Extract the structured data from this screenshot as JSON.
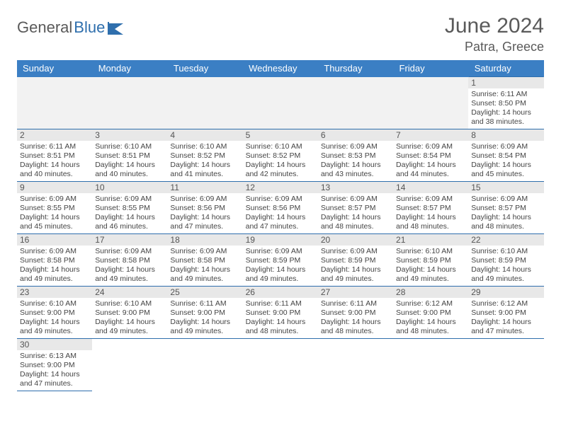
{
  "logo": {
    "text1": "General",
    "text2": "Blue"
  },
  "title": "June 2024",
  "location": "Patra, Greece",
  "colors": {
    "header_bg": "#3b7fc4",
    "header_fg": "#ffffff",
    "grid_line": "#2f6fad",
    "daynum_bg": "#e8e8e8",
    "empty_bg": "#f2f2f2",
    "text": "#444444",
    "title_color": "#5a5a5a"
  },
  "weekdays": [
    "Sunday",
    "Monday",
    "Tuesday",
    "Wednesday",
    "Thursday",
    "Friday",
    "Saturday"
  ],
  "weeks": [
    [
      null,
      null,
      null,
      null,
      null,
      null,
      {
        "n": "1",
        "sr": "6:11 AM",
        "ss": "8:50 PM",
        "dl": "14 hours and 38 minutes."
      }
    ],
    [
      {
        "n": "2",
        "sr": "6:11 AM",
        "ss": "8:51 PM",
        "dl": "14 hours and 40 minutes."
      },
      {
        "n": "3",
        "sr": "6:10 AM",
        "ss": "8:51 PM",
        "dl": "14 hours and 40 minutes."
      },
      {
        "n": "4",
        "sr": "6:10 AM",
        "ss": "8:52 PM",
        "dl": "14 hours and 41 minutes."
      },
      {
        "n": "5",
        "sr": "6:10 AM",
        "ss": "8:52 PM",
        "dl": "14 hours and 42 minutes."
      },
      {
        "n": "6",
        "sr": "6:09 AM",
        "ss": "8:53 PM",
        "dl": "14 hours and 43 minutes."
      },
      {
        "n": "7",
        "sr": "6:09 AM",
        "ss": "8:54 PM",
        "dl": "14 hours and 44 minutes."
      },
      {
        "n": "8",
        "sr": "6:09 AM",
        "ss": "8:54 PM",
        "dl": "14 hours and 45 minutes."
      }
    ],
    [
      {
        "n": "9",
        "sr": "6:09 AM",
        "ss": "8:55 PM",
        "dl": "14 hours and 45 minutes."
      },
      {
        "n": "10",
        "sr": "6:09 AM",
        "ss": "8:55 PM",
        "dl": "14 hours and 46 minutes."
      },
      {
        "n": "11",
        "sr": "6:09 AM",
        "ss": "8:56 PM",
        "dl": "14 hours and 47 minutes."
      },
      {
        "n": "12",
        "sr": "6:09 AM",
        "ss": "8:56 PM",
        "dl": "14 hours and 47 minutes."
      },
      {
        "n": "13",
        "sr": "6:09 AM",
        "ss": "8:57 PM",
        "dl": "14 hours and 48 minutes."
      },
      {
        "n": "14",
        "sr": "6:09 AM",
        "ss": "8:57 PM",
        "dl": "14 hours and 48 minutes."
      },
      {
        "n": "15",
        "sr": "6:09 AM",
        "ss": "8:57 PM",
        "dl": "14 hours and 48 minutes."
      }
    ],
    [
      {
        "n": "16",
        "sr": "6:09 AM",
        "ss": "8:58 PM",
        "dl": "14 hours and 49 minutes."
      },
      {
        "n": "17",
        "sr": "6:09 AM",
        "ss": "8:58 PM",
        "dl": "14 hours and 49 minutes."
      },
      {
        "n": "18",
        "sr": "6:09 AM",
        "ss": "8:58 PM",
        "dl": "14 hours and 49 minutes."
      },
      {
        "n": "19",
        "sr": "6:09 AM",
        "ss": "8:59 PM",
        "dl": "14 hours and 49 minutes."
      },
      {
        "n": "20",
        "sr": "6:09 AM",
        "ss": "8:59 PM",
        "dl": "14 hours and 49 minutes."
      },
      {
        "n": "21",
        "sr": "6:10 AM",
        "ss": "8:59 PM",
        "dl": "14 hours and 49 minutes."
      },
      {
        "n": "22",
        "sr": "6:10 AM",
        "ss": "8:59 PM",
        "dl": "14 hours and 49 minutes."
      }
    ],
    [
      {
        "n": "23",
        "sr": "6:10 AM",
        "ss": "9:00 PM",
        "dl": "14 hours and 49 minutes."
      },
      {
        "n": "24",
        "sr": "6:10 AM",
        "ss": "9:00 PM",
        "dl": "14 hours and 49 minutes."
      },
      {
        "n": "25",
        "sr": "6:11 AM",
        "ss": "9:00 PM",
        "dl": "14 hours and 49 minutes."
      },
      {
        "n": "26",
        "sr": "6:11 AM",
        "ss": "9:00 PM",
        "dl": "14 hours and 48 minutes."
      },
      {
        "n": "27",
        "sr": "6:11 AM",
        "ss": "9:00 PM",
        "dl": "14 hours and 48 minutes."
      },
      {
        "n": "28",
        "sr": "6:12 AM",
        "ss": "9:00 PM",
        "dl": "14 hours and 48 minutes."
      },
      {
        "n": "29",
        "sr": "6:12 AM",
        "ss": "9:00 PM",
        "dl": "14 hours and 47 minutes."
      }
    ],
    [
      {
        "n": "30",
        "sr": "6:13 AM",
        "ss": "9:00 PM",
        "dl": "14 hours and 47 minutes."
      },
      null,
      null,
      null,
      null,
      null,
      null
    ]
  ],
  "labels": {
    "sunrise_prefix": "Sunrise: ",
    "sunset_prefix": "Sunset: ",
    "daylight_prefix": "Daylight: "
  }
}
